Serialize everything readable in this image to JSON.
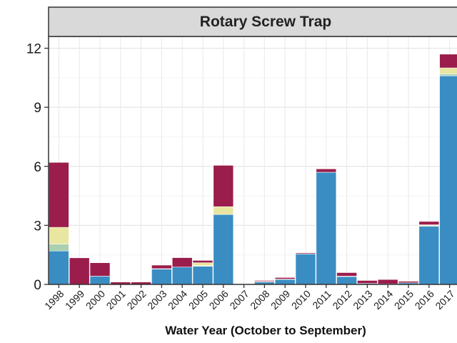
{
  "chart_data": {
    "type": "bar",
    "stacked": true,
    "title": "Rotary Screw Trap",
    "xlabel": "Water Year (October to September)",
    "ylabel": "",
    "categories": [
      "1998",
      "1999",
      "2000",
      "2001",
      "2002",
      "2003",
      "2004",
      "2005",
      "2006",
      "2007",
      "2008",
      "2009",
      "2010",
      "2011",
      "2012",
      "2013",
      "2014",
      "2015",
      "2016",
      "2017"
    ],
    "ylim": [
      0,
      12.6
    ],
    "yticks": [
      0,
      3,
      6,
      9,
      12
    ],
    "grid": true,
    "legend": "none",
    "series": [
      {
        "color": "#3a8dc3",
        "values": [
          1.7,
          0,
          0.42,
          0,
          0,
          0.78,
          0.88,
          0.92,
          3.55,
          0,
          0.12,
          0.25,
          1.55,
          5.7,
          0.4,
          0.05,
          0.02,
          0.08,
          2.95,
          10.6
        ]
      },
      {
        "color": "#a9d0b0",
        "values": [
          0.35,
          0,
          0,
          0,
          0,
          0,
          0,
          0.03,
          0,
          0,
          0.03,
          0,
          0,
          0,
          0,
          0,
          0,
          0,
          0.05,
          0.1
        ]
      },
      {
        "color": "#e8e6a0",
        "values": [
          0.85,
          0,
          0,
          0,
          0,
          0.02,
          0,
          0.15,
          0.4,
          0,
          0,
          0.02,
          0,
          0,
          0.02,
          0,
          0,
          0,
          0.03,
          0.3
        ]
      },
      {
        "color": "#9b1d4b",
        "values": [
          3.3,
          1.35,
          0.68,
          0.12,
          0.12,
          0.18,
          0.48,
          0.12,
          2.1,
          0,
          0.05,
          0.08,
          0.05,
          0.17,
          0.18,
          0.15,
          0.23,
          0.08,
          0.17,
          0.7
        ]
      }
    ]
  }
}
